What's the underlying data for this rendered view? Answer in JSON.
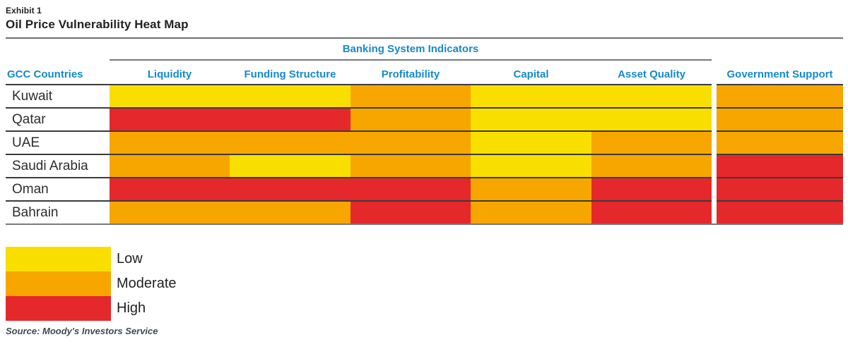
{
  "exhibit_label": "Exhibit 1",
  "title": "Oil Price Vulnerability Heat Map",
  "table": {
    "group_header": "Banking System Indicators",
    "row_header_label": "GCC Countries",
    "columns": [
      "Liquidity",
      "Funding Structure",
      "Profitability",
      "Capital",
      "Asset Quality"
    ],
    "gov_support_label": "Government Support",
    "rows": [
      {
        "country": "Kuwait",
        "ratings": [
          "low",
          "low",
          "moderate",
          "low",
          "low"
        ],
        "government_support": "moderate"
      },
      {
        "country": "Qatar",
        "ratings": [
          "high",
          "high",
          "moderate",
          "low",
          "low"
        ],
        "government_support": "moderate"
      },
      {
        "country": "UAE",
        "ratings": [
          "moderate",
          "moderate",
          "moderate",
          "low",
          "moderate"
        ],
        "government_support": "moderate"
      },
      {
        "country": "Saudi Arabia",
        "ratings": [
          "moderate",
          "low",
          "moderate",
          "low",
          "moderate"
        ],
        "government_support": "high"
      },
      {
        "country": "Oman",
        "ratings": [
          "high",
          "high",
          "high",
          "moderate",
          "high"
        ],
        "government_support": "high"
      },
      {
        "country": "Bahrain",
        "ratings": [
          "moderate",
          "moderate",
          "high",
          "moderate",
          "high"
        ],
        "government_support": "high"
      }
    ]
  },
  "legend": [
    {
      "label": "Low",
      "level": "low"
    },
    {
      "label": "Moderate",
      "level": "moderate"
    },
    {
      "label": "High",
      "level": "high"
    }
  ],
  "source": "Source: Moody's Investors Service",
  "colors": {
    "low": "#f8df00",
    "moderate": "#f7a600",
    "high": "#e5282b",
    "header_blue": "#1689cb"
  },
  "chart_data": {
    "type": "heatmap",
    "title": "Oil Price Vulnerability Heat Map",
    "subtitle": "Exhibit 1",
    "rows": [
      "Kuwait",
      "Qatar",
      "UAE",
      "Saudi Arabia",
      "Oman",
      "Bahrain"
    ],
    "row_axis_label": "GCC Countries",
    "columns": [
      "Liquidity",
      "Funding Structure",
      "Profitability",
      "Capital",
      "Asset Quality",
      "Government Support"
    ],
    "column_groups": [
      {
        "label": "Banking System Indicators",
        "columns": [
          "Liquidity",
          "Funding Structure",
          "Profitability",
          "Capital",
          "Asset Quality"
        ]
      }
    ],
    "values": [
      [
        "Low",
        "Low",
        "Moderate",
        "Low",
        "Low",
        "Moderate"
      ],
      [
        "High",
        "High",
        "Moderate",
        "Low",
        "Low",
        "Moderate"
      ],
      [
        "Moderate",
        "Moderate",
        "Moderate",
        "Low",
        "Moderate",
        "Moderate"
      ],
      [
        "Moderate",
        "Low",
        "Moderate",
        "Low",
        "Moderate",
        "High"
      ],
      [
        "High",
        "High",
        "High",
        "Moderate",
        "High",
        "High"
      ],
      [
        "Moderate",
        "Moderate",
        "High",
        "Moderate",
        "High",
        "High"
      ]
    ],
    "scale": [
      {
        "label": "Low",
        "color": "#f8df00"
      },
      {
        "label": "Moderate",
        "color": "#f7a600"
      },
      {
        "label": "High",
        "color": "#e5282b"
      }
    ],
    "legend_position": "bottom-left",
    "source": "Source: Moody's Investors Service"
  }
}
